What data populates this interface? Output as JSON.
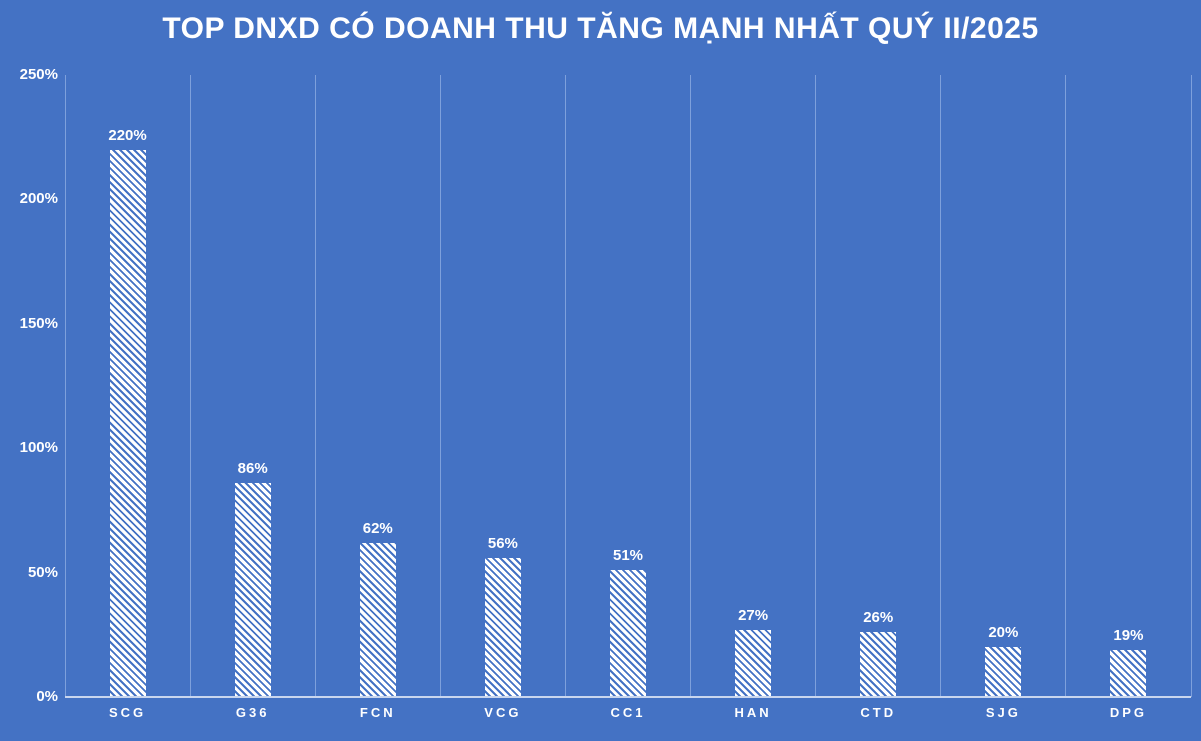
{
  "title": "TOP DNXD CÓ DOANH THU TĂNG MẠNH NHẤT QUÝ II/2025",
  "chart_data": {
    "type": "bar",
    "title": "TOP DNXD CÓ DOANH THU TĂNG MẠNH NHẤT QUÝ II/2025",
    "categories": [
      "SCG",
      "G36",
      "FCN",
      "VCG",
      "CC1",
      "HAN",
      "CTD",
      "SJG",
      "DPG"
    ],
    "values": [
      220,
      86,
      62,
      56,
      51,
      27,
      26,
      20,
      19
    ],
    "value_labels": [
      "220%",
      "86%",
      "62%",
      "56%",
      "51%",
      "27%",
      "26%",
      "20%",
      "19%"
    ],
    "xlabel": "",
    "ylabel": "",
    "ylim": [
      0,
      250
    ],
    "ytick_labels": [
      "0%",
      "50%",
      "100%",
      "150%",
      "200%",
      "250%"
    ],
    "ytick_values": [
      0,
      50,
      100,
      150,
      200,
      250
    ],
    "grid": "vertical-category-separators",
    "legend_position": "none",
    "colors": {
      "background": "#4472C4",
      "bar_fill": "#FFFFFF",
      "bar_hatch": "#4472C4",
      "gridline": "#7EA0DC",
      "axis_line": "#C9D6EE",
      "text": "#FFFFFF"
    }
  }
}
